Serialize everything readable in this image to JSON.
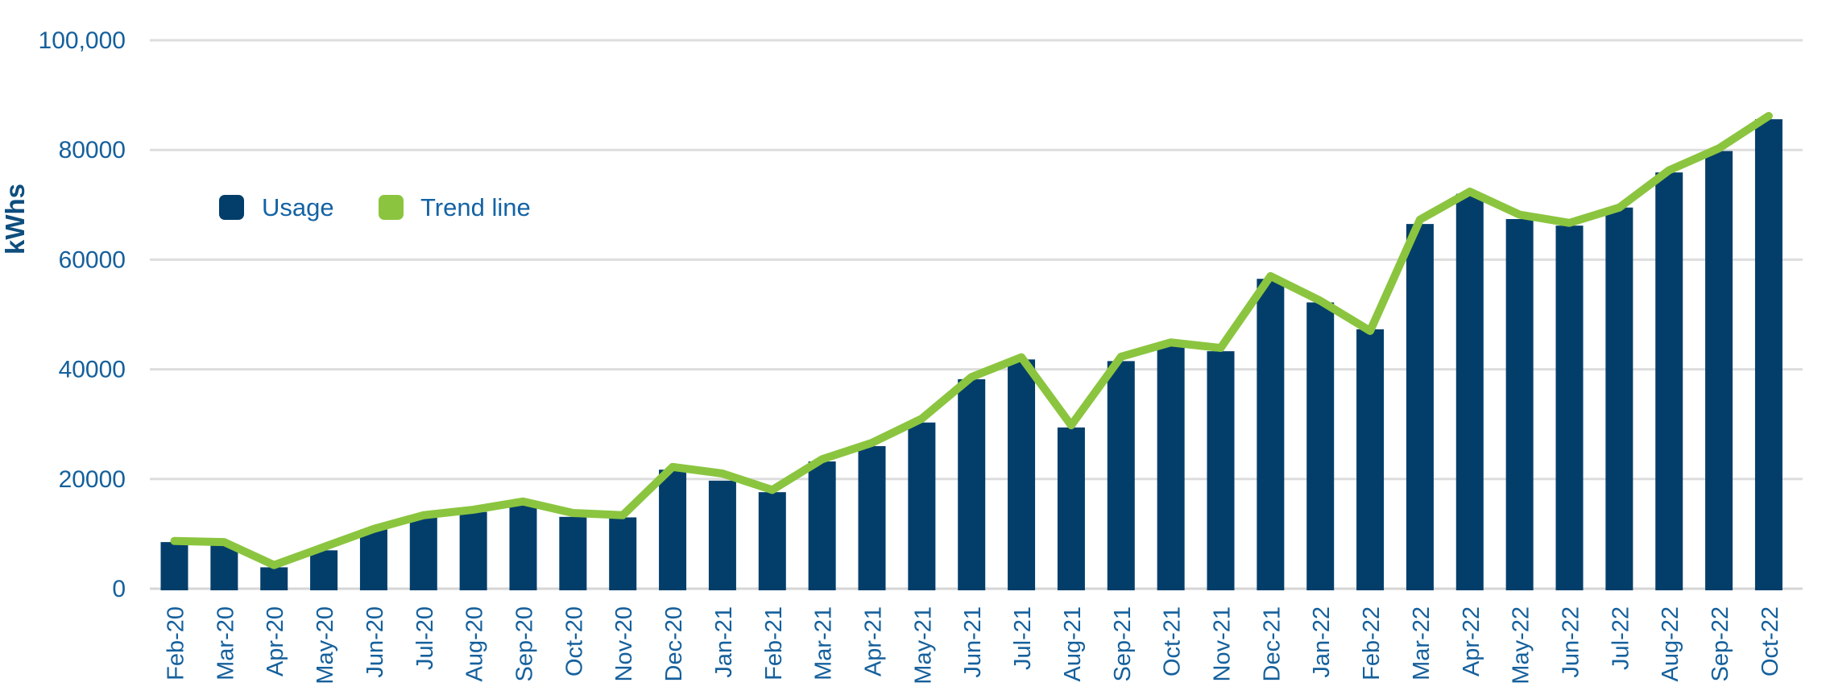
{
  "chart_data": {
    "type": "bar",
    "title": "",
    "ylabel": "kWhs",
    "xlabel": "",
    "ylim": [
      0,
      100000
    ],
    "grid": true,
    "legend_position": "top-left",
    "y_ticks": [
      "0",
      "20000",
      "40000",
      "60000",
      "80000",
      "100,000"
    ],
    "y_tick_values": [
      0,
      20000,
      40000,
      60000,
      80000,
      100000
    ],
    "categories": [
      "Feb-20",
      "Mar-20",
      "Apr-20",
      "May-20",
      "Jun-20",
      "Jul-20",
      "Aug-20",
      "Sep-20",
      "Oct-20",
      "Nov-20",
      "Dec-20",
      "Jan-21",
      "Feb-21",
      "Mar-21",
      "Apr-21",
      "May-21",
      "Jun-21",
      "Jul-21",
      "Aug-21",
      "Sep-21",
      "Oct-21",
      "Nov-21",
      "Dec-21",
      "Jan-22",
      "Feb-22",
      "Mar-22",
      "Apr-22",
      "May-22",
      "Jun-22",
      "Jul-22",
      "Aug-22",
      "Sep-22",
      "Oct-22"
    ],
    "series": [
      {
        "name": "Usage",
        "type": "bar",
        "color": "#033E6B",
        "values": [
          8500,
          8100,
          3900,
          7000,
          10800,
          13100,
          14000,
          15200,
          13100,
          13000,
          21700,
          19700,
          17600,
          23200,
          26000,
          30300,
          38200,
          41800,
          29400,
          41500,
          44400,
          43300,
          56500,
          52200,
          47300,
          66500,
          72000,
          67400,
          66200,
          69500,
          75900,
          79800,
          85600
        ]
      },
      {
        "name": "Trend line",
        "type": "line",
        "color": "#8BC53F",
        "values": [
          8700,
          8500,
          4300,
          7600,
          10900,
          13400,
          14400,
          15900,
          13800,
          13400,
          22200,
          21000,
          18000,
          23600,
          26600,
          31000,
          38600,
          42200,
          29800,
          42300,
          44900,
          43900,
          57000,
          52500,
          47000,
          67300,
          72400,
          68200,
          66700,
          69500,
          76300,
          80300,
          86200
        ]
      }
    ]
  },
  "colors": {
    "bar": "#033E6B",
    "trend": "#8BC53F",
    "gridline": "#DDDDDD",
    "axis_line": "#D6D6D6",
    "tick_text": "#15609C",
    "legend_text": "#1463A5",
    "y_title_text": "#0E4E7E",
    "background": "#FFFFFF"
  }
}
